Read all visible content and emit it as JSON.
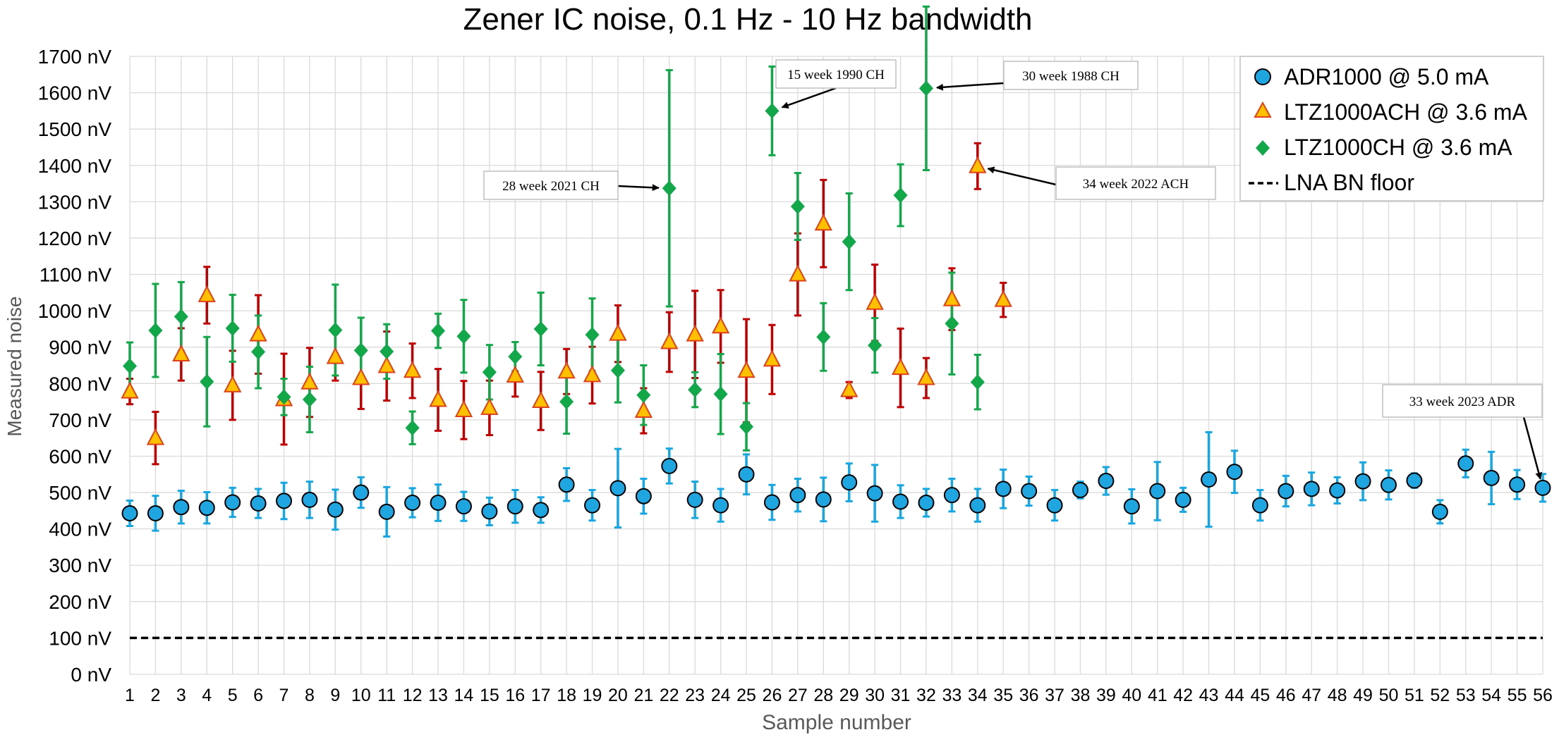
{
  "chart_data": {
    "type": "scatter",
    "title": "Zener IC noise, 0.1 Hz - 10 Hz bandwidth",
    "xlabel": "Sample number",
    "ylabel": "Measured noise",
    "y_unit": "nV",
    "xlim": [
      1,
      56
    ],
    "ylim": [
      0,
      1700
    ],
    "y_ticks": [
      0,
      100,
      200,
      300,
      400,
      500,
      600,
      700,
      800,
      900,
      1000,
      1100,
      1200,
      1300,
      1400,
      1500,
      1600,
      1700
    ],
    "grid": true,
    "legend_position": "top-right",
    "series": [
      {
        "name": "ADR1000 @ 5.0 mA",
        "marker": "circle",
        "color": "#1fa6e0",
        "error_color": "#16a7e2",
        "points": [
          [
            1,
            443,
            35
          ],
          [
            2,
            443,
            48
          ],
          [
            3,
            460,
            45
          ],
          [
            4,
            458,
            43
          ],
          [
            5,
            473,
            40
          ],
          [
            6,
            470,
            40
          ],
          [
            7,
            477,
            50
          ],
          [
            8,
            480,
            50
          ],
          [
            9,
            453,
            55
          ],
          [
            10,
            500,
            42
          ],
          [
            11,
            447,
            68
          ],
          [
            12,
            472,
            40
          ],
          [
            13,
            472,
            50
          ],
          [
            14,
            462,
            40
          ],
          [
            15,
            448,
            38
          ],
          [
            16,
            462,
            45
          ],
          [
            17,
            452,
            35
          ],
          [
            18,
            522,
            45
          ],
          [
            19,
            465,
            42
          ],
          [
            20,
            512,
            108
          ],
          [
            21,
            490,
            48
          ],
          [
            22,
            573,
            48
          ],
          [
            23,
            480,
            50
          ],
          [
            24,
            465,
            45
          ],
          [
            25,
            550,
            55
          ],
          [
            26,
            473,
            48
          ],
          [
            27,
            493,
            45
          ],
          [
            28,
            481,
            60
          ],
          [
            29,
            528,
            52
          ],
          [
            30,
            498,
            78
          ],
          [
            31,
            475,
            45
          ],
          [
            32,
            472,
            38
          ],
          [
            33,
            493,
            45
          ],
          [
            34,
            465,
            45
          ],
          [
            35,
            510,
            53
          ],
          [
            36,
            504,
            40
          ],
          [
            37,
            465,
            42
          ],
          [
            38,
            507,
            23
          ],
          [
            39,
            532,
            38
          ],
          [
            40,
            462,
            47
          ],
          [
            41,
            504,
            80
          ],
          [
            42,
            480,
            33
          ],
          [
            43,
            536,
            130
          ],
          [
            44,
            557,
            58
          ],
          [
            45,
            465,
            42
          ],
          [
            46,
            504,
            42
          ],
          [
            47,
            510,
            45
          ],
          [
            48,
            506,
            36
          ],
          [
            49,
            531,
            52
          ],
          [
            50,
            521,
            40
          ],
          [
            51,
            533,
            20
          ],
          [
            52,
            447,
            32
          ],
          [
            53,
            580,
            38
          ],
          [
            54,
            540,
            72
          ],
          [
            55,
            522,
            40
          ],
          [
            56,
            513,
            38
          ]
        ]
      },
      {
        "name": "LTZ1000ACH @ 3.6 mA",
        "marker": "triangle",
        "color": "#ffc000",
        "edge_color": "#e0401a",
        "error_color": "#c00000",
        "points": [
          [
            1,
            778,
            35
          ],
          [
            2,
            650,
            72
          ],
          [
            3,
            880,
            72
          ],
          [
            4,
            1043,
            78
          ],
          [
            5,
            795,
            95
          ],
          [
            6,
            935,
            108
          ],
          [
            7,
            757,
            125
          ],
          [
            8,
            803,
            95
          ],
          [
            9,
            873,
            65
          ],
          [
            10,
            815,
            85
          ],
          [
            11,
            848,
            95
          ],
          [
            12,
            835,
            75
          ],
          [
            13,
            755,
            85
          ],
          [
            14,
            727,
            80
          ],
          [
            15,
            733,
            75
          ],
          [
            16,
            822,
            58
          ],
          [
            17,
            752,
            80
          ],
          [
            18,
            833,
            62
          ],
          [
            19,
            823,
            78
          ],
          [
            20,
            937,
            78
          ],
          [
            21,
            725,
            62
          ],
          [
            22,
            914,
            82
          ],
          [
            23,
            935,
            120
          ],
          [
            24,
            957,
            100
          ],
          [
            25,
            835,
            142
          ],
          [
            26,
            866,
            95
          ],
          [
            27,
            1100,
            113
          ],
          [
            28,
            1240,
            120
          ],
          [
            29,
            782,
            22
          ],
          [
            30,
            1022,
            105
          ],
          [
            31,
            843,
            108
          ],
          [
            32,
            815,
            55
          ],
          [
            33,
            1032,
            85
          ],
          [
            34,
            1398,
            63
          ],
          [
            35,
            1030,
            47
          ]
        ]
      },
      {
        "name": "LTZ1000CH @ 3.6 mA",
        "marker": "diamond",
        "color": "#12a84a",
        "error_color": "#12a84a",
        "points": [
          [
            1,
            848,
            65
          ],
          [
            2,
            946,
            128
          ],
          [
            3,
            984,
            95
          ],
          [
            4,
            805,
            123
          ],
          [
            5,
            952,
            92
          ],
          [
            6,
            887,
            100
          ],
          [
            7,
            763,
            50
          ],
          [
            8,
            756,
            90
          ],
          [
            9,
            947,
            125
          ],
          [
            10,
            891,
            90
          ],
          [
            11,
            888,
            75
          ],
          [
            12,
            678,
            45
          ],
          [
            13,
            945,
            47
          ],
          [
            14,
            930,
            100
          ],
          [
            15,
            831,
            75
          ],
          [
            16,
            874,
            40
          ],
          [
            17,
            950,
            100
          ],
          [
            18,
            750,
            88
          ],
          [
            19,
            934,
            100
          ],
          [
            20,
            836,
            88
          ],
          [
            21,
            768,
            82
          ],
          [
            22,
            1337,
            325
          ],
          [
            23,
            783,
            48
          ],
          [
            24,
            771,
            110
          ],
          [
            25,
            681,
            65
          ],
          [
            26,
            1550,
            122
          ],
          [
            27,
            1287,
            92
          ],
          [
            28,
            928,
            93
          ],
          [
            29,
            1190,
            133
          ],
          [
            30,
            905,
            75
          ],
          [
            31,
            1318,
            85
          ],
          [
            32,
            1612,
            225
          ],
          [
            33,
            965,
            140
          ],
          [
            34,
            804,
            75
          ]
        ]
      },
      {
        "name": "LNA BN floor",
        "style": "dashed-line",
        "color": "#000000",
        "y": 100
      }
    ],
    "annotations": [
      {
        "text": "15 week 1990 CH",
        "target_x": 26,
        "target_y": 1550
      },
      {
        "text": "30 week 1988 CH",
        "target_x": 32,
        "target_y": 1612
      },
      {
        "text": "28 week 2021 CH",
        "target_x": 22,
        "target_y": 1337
      },
      {
        "text": "34 week 2022 ACH",
        "target_x": 34,
        "target_y": 1398
      },
      {
        "text": "33 week 2023 ADR",
        "target_x": 56,
        "target_y": 513
      }
    ]
  }
}
